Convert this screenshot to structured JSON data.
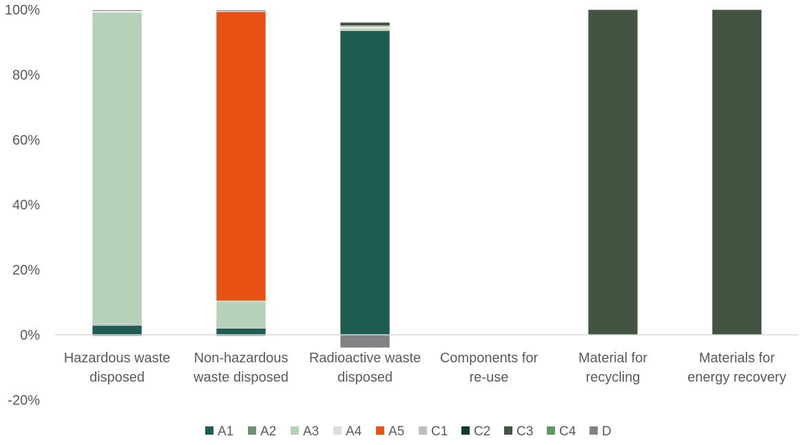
{
  "chart_data": {
    "type": "bar",
    "stacked": true,
    "title": "",
    "xlabel": "",
    "ylabel": "",
    "ylim": [
      -20,
      100
    ],
    "yticks": [
      "-20%",
      "0%",
      "20%",
      "40%",
      "60%",
      "80%",
      "100%"
    ],
    "ytick_values": [
      -20,
      0,
      20,
      40,
      60,
      80,
      100
    ],
    "grid": false,
    "legend_position": "bottom",
    "categories": [
      [
        "Hazardous waste",
        "disposed"
      ],
      [
        "Non-hazardous",
        "waste disposed"
      ],
      [
        "Radioactive waste",
        "disposed"
      ],
      [
        "Components for",
        "re-use"
      ],
      [
        "Material for",
        "recycling"
      ],
      [
        "Materials for",
        "energy recovery"
      ]
    ],
    "series": [
      {
        "name": "A1",
        "color": "#1e5c52",
        "values": [
          2.9,
          2.0,
          93.5,
          0,
          0,
          0
        ]
      },
      {
        "name": "A2",
        "color": "#6f8f72",
        "values": [
          0.3,
          0.3,
          0.3,
          0,
          0,
          0
        ]
      },
      {
        "name": "A3",
        "color": "#b5d1b8",
        "values": [
          96.0,
          8.0,
          0.5,
          0,
          0,
          0
        ]
      },
      {
        "name": "A4",
        "color": "#dcdcdc",
        "values": [
          0.1,
          0.1,
          0.2,
          0,
          0,
          0
        ]
      },
      {
        "name": "A5",
        "color": "#e85215",
        "values": [
          0.1,
          89.0,
          0,
          0,
          0,
          0
        ]
      },
      {
        "name": "C1",
        "color": "#bfbfbf",
        "values": [
          0.1,
          0.1,
          0.5,
          0,
          0,
          0
        ]
      },
      {
        "name": "C2",
        "color": "#0f3a2e",
        "values": [
          0,
          0,
          0,
          0,
          0,
          0
        ]
      },
      {
        "name": "C3",
        "color": "#435442",
        "values": [
          0.3,
          0.3,
          1.1,
          0,
          100,
          100
        ]
      },
      {
        "name": "C4",
        "color": "#5e9a62",
        "values": [
          0,
          0,
          0,
          0,
          0,
          0
        ]
      },
      {
        "name": "D",
        "color": "#808285",
        "values": [
          -0.4,
          -0.4,
          -4.0,
          0,
          0,
          0
        ]
      }
    ]
  }
}
